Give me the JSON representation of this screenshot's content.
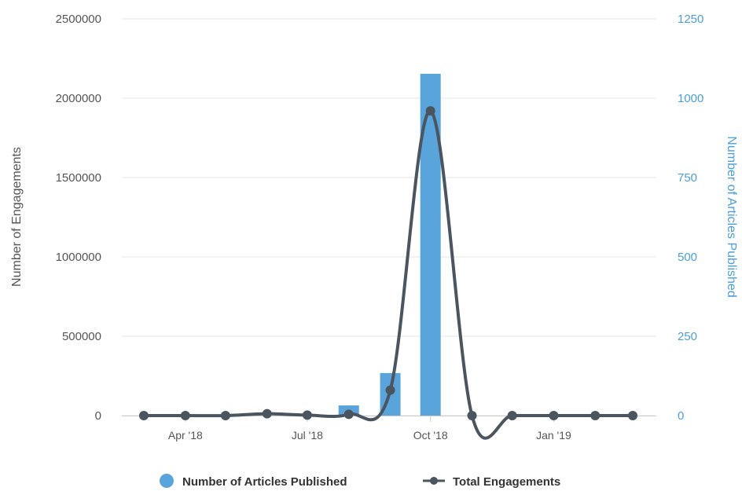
{
  "chart_data": {
    "type": "bar+line",
    "title": "",
    "x_tick_labels": [
      "Apr '18",
      "Jul '18",
      "Oct '18",
      "Jan '19"
    ],
    "y_left": {
      "label": "Number of Engagements",
      "ylim": [
        0,
        2500000
      ],
      "ticks": [
        "0",
        "500000",
        "1000000",
        "1500000",
        "2000000",
        "2500000"
      ]
    },
    "y_right": {
      "label": "Number of Articles Published",
      "ylim": [
        0,
        1250
      ],
      "ticks": [
        "0",
        "250",
        "500",
        "750",
        "1000",
        "1250"
      ]
    },
    "x": [
      "2018-03-01",
      "2018-04-01",
      "2018-05-01",
      "2018-06-01",
      "2018-07-01",
      "2018-08-01",
      "2018-09-01",
      "2018-10-01",
      "2018-11-01",
      "2018-12-01",
      "2019-01-01",
      "2019-02-01",
      "2019-03-01"
    ],
    "series": [
      {
        "name": "Number of Articles Published",
        "type": "bar",
        "axis": "right",
        "color": "#5aa4dc",
        "values": [
          0,
          0,
          0,
          0,
          0,
          32,
          134,
          1077,
          0,
          0,
          0,
          0,
          0
        ]
      },
      {
        "name": "Total Engagements",
        "type": "line",
        "axis": "left",
        "color": "#4a5560",
        "values": [
          0,
          0,
          0,
          12000,
          3000,
          8000,
          160000,
          1920000,
          0,
          0,
          0,
          0,
          0
        ]
      }
    ],
    "grid": true,
    "legend_position": "bottom-center"
  }
}
